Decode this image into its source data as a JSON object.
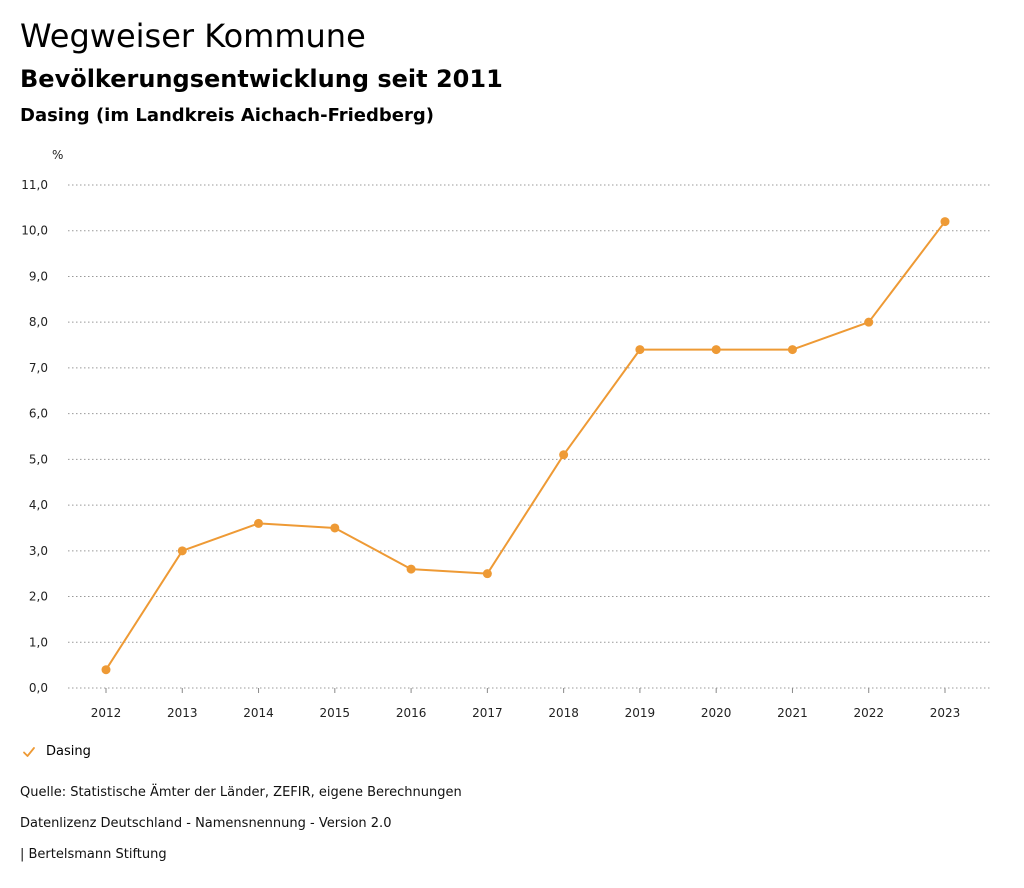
{
  "header": {
    "title": "Wegweiser Kommune",
    "subtitle": "Bevölkerungsentwicklung seit 2011",
    "municipality": "Dasing (im Landkreis Aichach-Friedberg)"
  },
  "colors": {
    "series": "#ee9a35",
    "grid": "#999999",
    "axis": "#888888"
  },
  "chart_data": {
    "type": "line",
    "title": "Bevölkerungsentwicklung seit 2011",
    "ylabel": "%",
    "xlabel": "",
    "ylim": [
      0,
      11
    ],
    "yticks": [
      "0,0",
      "1,0",
      "2,0",
      "3,0",
      "4,0",
      "5,0",
      "6,0",
      "7,0",
      "8,0",
      "9,0",
      "10,0",
      "11,0"
    ],
    "ytick_values": [
      0,
      1,
      2,
      3,
      4,
      5,
      6,
      7,
      8,
      9,
      10,
      11
    ],
    "categories": [
      "2012",
      "2013",
      "2014",
      "2015",
      "2016",
      "2017",
      "2018",
      "2019",
      "2020",
      "2021",
      "2022",
      "2023"
    ],
    "series": [
      {
        "name": "Dasing",
        "values": [
          0.4,
          3.0,
          3.6,
          3.5,
          2.6,
          2.5,
          5.1,
          7.4,
          7.4,
          7.4,
          8.0,
          10.2
        ]
      }
    ],
    "grid": true,
    "legend": "bottom-left"
  },
  "legend": {
    "label": "Dasing",
    "icon": "check-icon"
  },
  "footer": {
    "source": "Quelle: Statistische Ämter der Länder, ZEFIR, eigene Berechnungen",
    "license": "Datenlizenz Deutschland - Namensnennung - Version 2.0",
    "publisher": "| Bertelsmann Stiftung"
  }
}
